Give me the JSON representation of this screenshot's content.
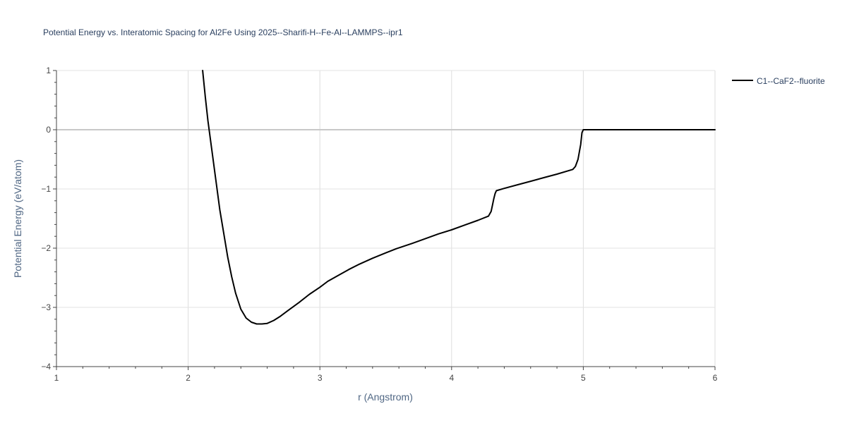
{
  "chart_data": {
    "type": "line",
    "title": "Potential Energy vs. Interatomic Spacing for Al2Fe Using 2025--Sharifi-H--Fe-Al--LAMMPS--ipr1",
    "xlabel": "r (Angstrom)",
    "ylabel": "Potential Energy (eV/atom)",
    "xlim": [
      1,
      6
    ],
    "ylim": [
      -4,
      1
    ],
    "xticks": [
      1,
      2,
      3,
      4,
      5,
      6
    ],
    "yticks": [
      1,
      0,
      -1,
      -2,
      -3,
      -4
    ],
    "ytick_labels": [
      "1",
      "0",
      "−1",
      "−2",
      "−3",
      "−4"
    ],
    "grid": true,
    "legend_position": "top-right",
    "series": [
      {
        "name": "C1--CaF2--fluorite",
        "color": "#000000",
        "x": [
          2.11,
          2.13,
          2.15,
          2.18,
          2.21,
          2.24,
          2.27,
          2.3,
          2.33,
          2.36,
          2.4,
          2.44,
          2.48,
          2.52,
          2.56,
          2.6,
          2.65,
          2.7,
          2.76,
          2.84,
          2.92,
          3.0,
          3.06,
          3.14,
          3.22,
          3.3,
          3.4,
          3.5,
          3.58,
          3.7,
          3.8,
          3.9,
          4.0,
          4.1,
          4.2,
          4.28,
          4.3,
          4.31,
          4.32,
          4.33,
          4.34,
          4.4,
          4.5,
          4.6,
          4.7,
          4.8,
          4.92,
          4.94,
          4.96,
          4.98,
          4.99,
          5.0,
          5.1,
          5.5,
          6.0
        ],
        "y": [
          1.0,
          0.55,
          0.15,
          -0.35,
          -0.85,
          -1.35,
          -1.75,
          -2.15,
          -2.48,
          -2.76,
          -3.03,
          -3.18,
          -3.25,
          -3.28,
          -3.28,
          -3.27,
          -3.22,
          -3.15,
          -3.05,
          -2.92,
          -2.78,
          -2.66,
          -2.56,
          -2.46,
          -2.36,
          -2.27,
          -2.17,
          -2.08,
          -2.01,
          -1.92,
          -1.84,
          -1.76,
          -1.69,
          -1.61,
          -1.53,
          -1.46,
          -1.38,
          -1.28,
          -1.17,
          -1.08,
          -1.03,
          -0.99,
          -0.93,
          -0.87,
          -0.81,
          -0.75,
          -0.67,
          -0.62,
          -0.5,
          -0.25,
          -0.05,
          0.0,
          0.0,
          0.0,
          0.0
        ]
      }
    ]
  }
}
